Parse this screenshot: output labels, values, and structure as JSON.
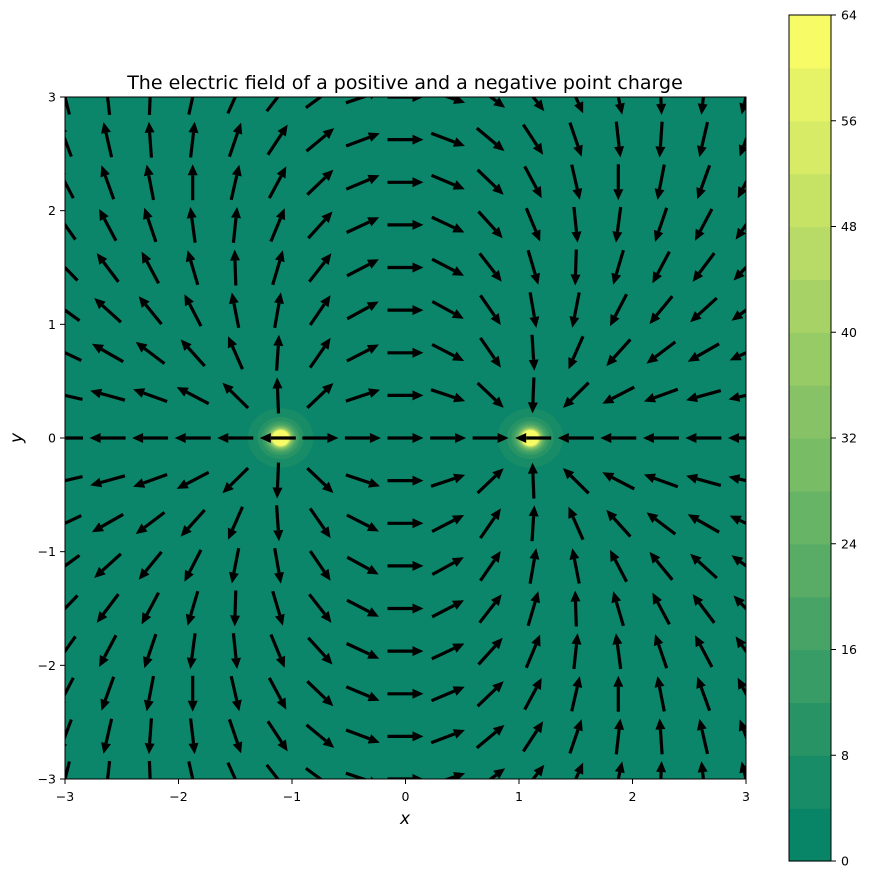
{
  "chart_data": {
    "type": "heatmap",
    "subtype": "quiver-over-filled-contour",
    "title": "The electric field of a positive and a negative point charge",
    "xlabel": "x",
    "ylabel": "y",
    "xlim": [
      -3,
      3
    ],
    "ylim": [
      -3,
      3
    ],
    "x_ticks": [
      -3,
      -2,
      -1,
      0,
      1,
      2,
      3
    ],
    "y_ticks": [
      -3,
      -2,
      -1,
      0,
      1,
      2,
      3
    ],
    "x_tick_labels": [
      "−3",
      "−2",
      "−1",
      "0",
      "1",
      "2",
      "3"
    ],
    "y_tick_labels": [
      "−3",
      "−2",
      "−1",
      "0",
      "1",
      "2",
      "3"
    ],
    "charges": [
      {
        "name": "positive",
        "q": 1,
        "x": -1.1,
        "y": 0
      },
      {
        "name": "negative",
        "q": -1,
        "x": 1.1,
        "y": 0
      }
    ],
    "contour": {
      "quantity": "field magnitude",
      "levels": [
        0,
        4,
        8,
        12,
        16,
        20,
        24,
        28,
        32,
        36,
        40,
        44,
        48,
        52,
        56,
        60,
        64
      ],
      "colormap": "summer",
      "colormap_endpoints": [
        "#008066",
        "#ffff66"
      ],
      "alpha": 0.95
    },
    "quiver": {
      "grid_points": 17,
      "normalized": true,
      "color": "#000000"
    },
    "colorbar": {
      "ticks": [
        0,
        8,
        16,
        24,
        32,
        40,
        48,
        56,
        64
      ],
      "tick_labels": [
        "0",
        "8",
        "16",
        "24",
        "32",
        "40",
        "48",
        "56",
        "64"
      ]
    },
    "grid": false
  }
}
